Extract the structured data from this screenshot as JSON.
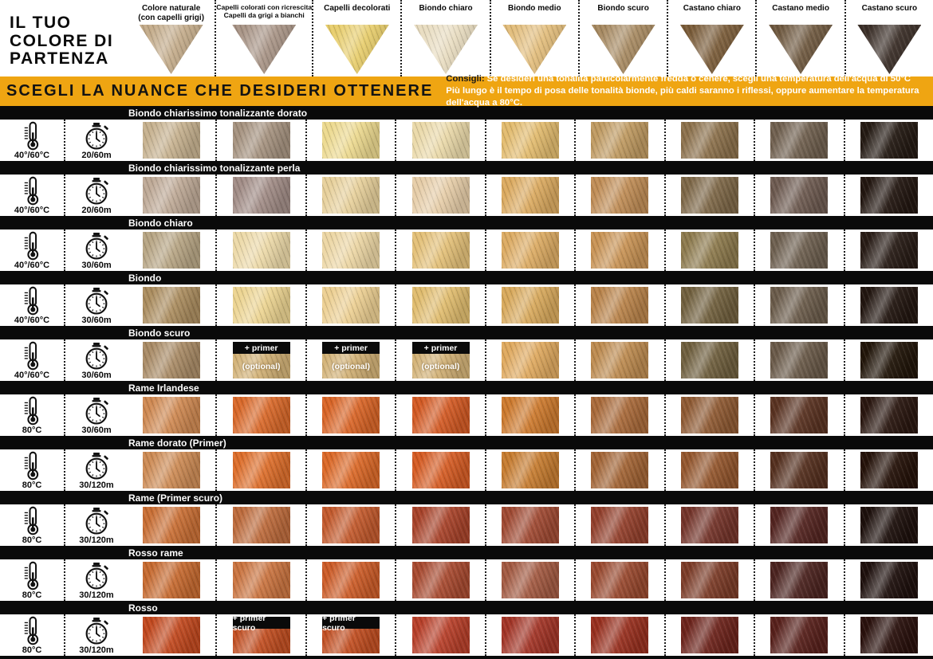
{
  "logo": {
    "lines": [
      "IL TUO",
      "COLORE DI",
      "PARTENZA"
    ]
  },
  "header": {
    "columns": [
      {
        "label": "Colore naturale\n(con capelli grigi)",
        "color": "#c3ab8a"
      },
      {
        "label": "Capelli colorati con ricrescita\nCapelli da grigi a bianchi",
        "color": "#a89486"
      },
      {
        "label": "Capelli decolorati",
        "color": "#e7cd6c"
      },
      {
        "label": "Biondo chiaro",
        "color": "#e8dcc0"
      },
      {
        "label": "Biondo medio",
        "color": "#e2bd7c"
      },
      {
        "label": "Biondo scuro",
        "color": "#a78a62"
      },
      {
        "label": "Castano chiaro",
        "color": "#7a5c39"
      },
      {
        "label": "Castano medio",
        "color": "#6f5940"
      },
      {
        "label": "Castano scuro",
        "color": "#3b2f28"
      }
    ]
  },
  "banner": {
    "title": "SCEGLI LA NUANCE CHE DESIDERI OTTENERE",
    "tip_label": "Consigli:",
    "tip_line1": "Se desideri una tonalità particolarmente fredda o cenere, scegli una temperatura dell'acqua di 50°C",
    "tip_line2": "Più lungo è il tempo di posa delle tonalità bionde, più caldi saranno i riflessi, oppure aumentare la temperatura dell'acqua a 80°C.",
    "bg": "#efa512"
  },
  "rows": [
    {
      "title": "Biondo chiarissimo tonalizzante dorato",
      "temp": "40°/60°C",
      "time": "20/60m",
      "swatches": [
        "#c6b18f",
        "#a5927f",
        "#ecd98f",
        "#ead9a9",
        "#e2bb6e",
        "#bf9a61",
        "#8c714c",
        "#70604f",
        "#241a13"
      ],
      "overlays": []
    },
    {
      "title": "Biondo chiarissimo tonalizzante perla",
      "temp": "40°/60°C",
      "time": "20/60m",
      "swatches": [
        "#bea996",
        "#a18c86",
        "#e7d09b",
        "#e6cda8",
        "#dbaa60",
        "#c08d56",
        "#7e6848",
        "#6e5b51",
        "#231711"
      ],
      "overlays": []
    },
    {
      "title": "Biondo chiaro",
      "temp": "40°/60°C",
      "time": "30/60m",
      "swatches": [
        "#b7a584",
        "#ecd9a8",
        "#ecd6a4",
        "#e3c078",
        "#dcab63",
        "#c89355",
        "#8d7a4d",
        "#6e6050",
        "#281c16"
      ],
      "overlays": []
    },
    {
      "title": "Biondo",
      "temp": "40°/60°C",
      "time": "30/60m",
      "swatches": [
        "#ab8d5f",
        "#ecd491",
        "#eccf92",
        "#e0bc6e",
        "#d8a95c",
        "#b9834a",
        "#71603e",
        "#6b5c4b",
        "#221610"
      ],
      "overlays": []
    },
    {
      "title": "Biondo scuro",
      "temp": "40°/60°C",
      "time": "30/60m",
      "swatches": [
        "#a98b66",
        "#d2b176",
        "#d2b176",
        "#d2b176",
        "#dfa95f",
        "#bd8b50",
        "#6f5f3e",
        "#6a5a49",
        "#211509"
      ],
      "overlays": [
        {
          "col": 1,
          "label": "+ primer",
          "sub": "(optional)"
        },
        {
          "col": 2,
          "label": "+ primer",
          "sub": "(optional)"
        },
        {
          "col": 3,
          "label": "+ primer",
          "sub": "(optional)"
        }
      ]
    },
    {
      "title": "Rame Irlandese",
      "temp": "80°C",
      "time": "30/60m",
      "swatches": [
        "#cf8952",
        "#d9692a",
        "#d96527",
        "#d35a24",
        "#cd7a2e",
        "#a96a3a",
        "#8f5a33",
        "#5a3322",
        "#2a1710"
      ],
      "overlays": []
    },
    {
      "title": "Rame dorato (Primer)",
      "temp": "80°C",
      "time": "30/120m",
      "swatches": [
        "#cd8b55",
        "#dd6e2b",
        "#db6928",
        "#d55c24",
        "#c67c30",
        "#a26435",
        "#94572e",
        "#55301f",
        "#251209"
      ],
      "overlays": []
    },
    {
      "title": "Rame (Primer scuro)",
      "temp": "80°C",
      "time": "30/120m",
      "swatches": [
        "#c96f35",
        "#bd6b3c",
        "#c35a2d",
        "#a8432a",
        "#a04a33",
        "#93402c",
        "#74342a",
        "#542521",
        "#1d100c"
      ],
      "overlays": []
    },
    {
      "title": "Rosso rame",
      "temp": "80°C",
      "time": "30/120m",
      "swatches": [
        "#c66a30",
        "#ca7440",
        "#cc5c28",
        "#a84a30",
        "#a35a42",
        "#99492f",
        "#7c3c28",
        "#4c2420",
        "#1e100d"
      ],
      "overlays": []
    },
    {
      "title": "Rosso",
      "temp": "80°C",
      "time": "30/120m",
      "swatches": [
        "#c2491f",
        "#c24f22",
        "#c24f22",
        "#b8402a",
        "#a33527",
        "#98301f",
        "#6d241c",
        "#58211c",
        "#2a110d"
      ],
      "overlays": [
        {
          "col": 1,
          "label": "+ primer scuro",
          "sub": null
        },
        {
          "col": 2,
          "label": "+ primer scuro",
          "sub": null
        }
      ]
    }
  ]
}
